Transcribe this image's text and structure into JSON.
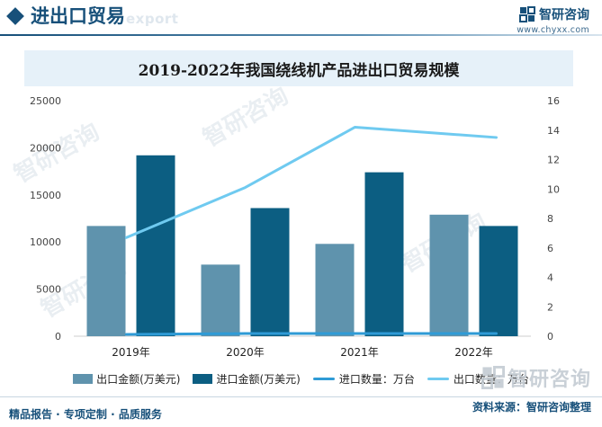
{
  "header": {
    "section_title": "进出口贸易",
    "section_sub": "export"
  },
  "brand": {
    "name": "智研咨询",
    "url": "www.chyxx.com"
  },
  "chart_data": {
    "type": "bar",
    "title": "2019-2022年我国绕线机产品进出口贸易规模",
    "categories": [
      "2019年",
      "2020年",
      "2021年",
      "2022年"
    ],
    "y_left": {
      "ylim": [
        0,
        25000
      ],
      "ticks": [
        0,
        5000,
        10000,
        15000,
        20000,
        25000
      ]
    },
    "y_right": {
      "ylim": [
        0,
        16
      ],
      "ticks": [
        0,
        2,
        4,
        6,
        8,
        10,
        12,
        14,
        16
      ]
    },
    "series": [
      {
        "name": "出口金额(万美元)",
        "kind": "bar",
        "axis": "left",
        "color": "#5f93ad",
        "values": [
          11700,
          7600,
          9800,
          12900
        ]
      },
      {
        "name": "进口金额(万美元)",
        "kind": "bar",
        "axis": "left",
        "color": "#0c5e82",
        "values": [
          19200,
          13600,
          17400,
          11700
        ]
      },
      {
        "name": "进口数量：万台",
        "kind": "line",
        "axis": "right",
        "color": "#2f9bd6",
        "values": [
          0.12,
          0.18,
          0.18,
          0.18
        ]
      },
      {
        "name": "出口数量：万台",
        "kind": "line",
        "axis": "right",
        "color": "#6fcaf0",
        "values": [
          6.7,
          10.1,
          14.2,
          13.5
        ]
      }
    ],
    "grid": false,
    "legend_position": "bottom"
  },
  "footer": {
    "slogan": "精品报告 · 专项定制 · 品质服务",
    "source": "资料来源：智研咨询整理"
  },
  "watermark_text": "智研咨询"
}
